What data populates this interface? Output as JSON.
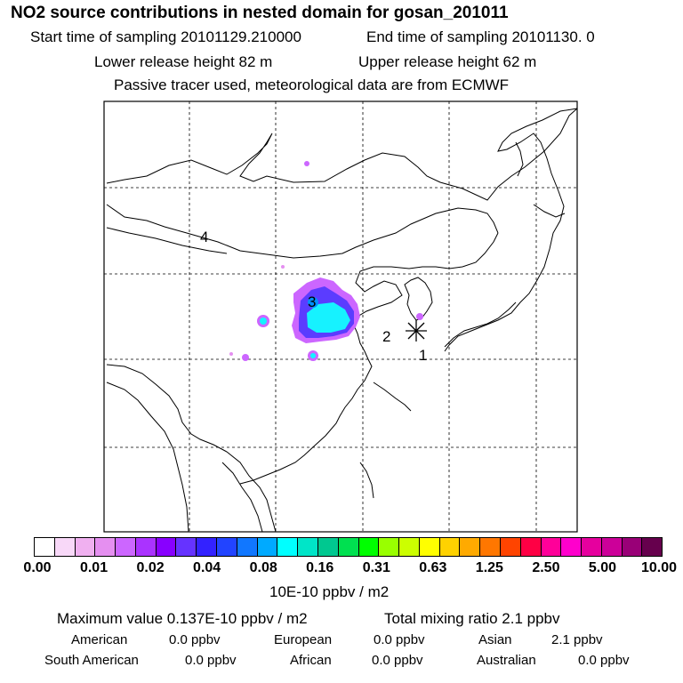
{
  "header": {
    "title": "NO2 source contributions in nested domain for gosan_201011",
    "start_time": "Start time of sampling 20101129.210000",
    "end_time": "End time of sampling 20101130.     0",
    "lower_release": "Lower release height   82 m",
    "upper_release": "Upper release height   62 m",
    "tracer_note": "Passive tracer used, meteorological data are from ECMWF"
  },
  "map": {
    "region_labels": [
      "1",
      "2",
      "3",
      "4"
    ],
    "receptor_marker": "asterisk",
    "colors": {
      "plume_outer": "#cc66ff",
      "plume_mid": "#5b3cff",
      "plume_core": "#16f2ff",
      "plume_edge": "#0090ff",
      "coastline": "#000000",
      "grid": "#000000"
    }
  },
  "colorbar": {
    "colors": [
      "#ffffff",
      "#f8d8f8",
      "#f0b0f0",
      "#e58ff0",
      "#cc66ff",
      "#aa33ff",
      "#8800ff",
      "#6633ff",
      "#3322ff",
      "#2244ff",
      "#1177ff",
      "#00aaff",
      "#00ffff",
      "#00e5c8",
      "#00c890",
      "#00e050",
      "#00ff00",
      "#99ff00",
      "#ccff00",
      "#ffff00",
      "#ffd200",
      "#ffaa00",
      "#ff7700",
      "#ff4400",
      "#ff0044",
      "#ff0099",
      "#ff00cc",
      "#e6009e",
      "#cc0099",
      "#990077",
      "#66004d"
    ],
    "tick_labels": [
      "0.00",
      "0.01",
      "0.02",
      "0.04",
      "0.08",
      "0.16",
      "0.31",
      "0.63",
      "1.25",
      "2.50",
      "5.00",
      "10.00"
    ],
    "unit": "10E-10 ppbv / m2"
  },
  "summary": {
    "max_value": "Maximum value  0.137E-10 ppbv / m2",
    "total_mixing": "Total mixing ratio       2.1 ppbv",
    "regions": [
      {
        "name": "American",
        "value": "0.0 ppbv"
      },
      {
        "name": "European",
        "value": "0.0 ppbv"
      },
      {
        "name": "Asian",
        "value": "2.1 ppbv"
      },
      {
        "name": "South American",
        "value": "0.0 ppbv"
      },
      {
        "name": "African",
        "value": "0.0 ppbv"
      },
      {
        "name": "Australian",
        "value": "0.0 ppbv"
      }
    ]
  }
}
